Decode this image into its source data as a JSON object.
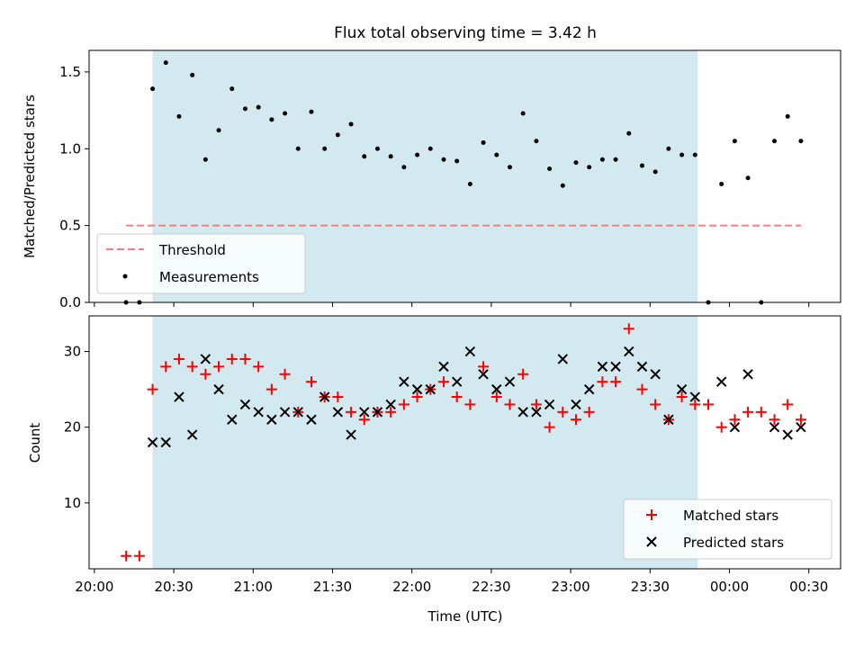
{
  "figure_title": "Flux total observing time = 3.42 h",
  "xlabel": "Time (UTC)",
  "chart_data": [
    {
      "type": "scatter",
      "title": "Flux total observing time = 3.42 h",
      "ylabel": "Matched/Predicted stars",
      "xlabel": "",
      "x_axis": "time",
      "xlim": [
        "19:58",
        "00:42"
      ],
      "ylim": [
        0,
        1.64
      ],
      "yticks": [
        0.0,
        0.5,
        1.0,
        1.5
      ],
      "ytick_labels": [
        "0.0",
        "0.5",
        "1.0",
        "1.5"
      ],
      "xticks": [
        "20:00",
        "20:30",
        "21:00",
        "21:30",
        "22:00",
        "22:30",
        "23:00",
        "23:30",
        "00:00",
        "00:30"
      ],
      "shaded_span": {
        "x": [
          "20:22",
          "23:48"
        ],
        "color": "#d3e9f0"
      },
      "threshold": {
        "name": "Threshold",
        "y": 0.5,
        "x": [
          "20:12",
          "00:27"
        ],
        "color": "#f08080",
        "style": "dashed"
      },
      "legend": {
        "position": "lower-left",
        "entries": [
          "Threshold",
          "Measurements"
        ]
      },
      "series": [
        {
          "name": "Measurements",
          "color": "#000000",
          "marker": "dot",
          "x": [
            "20:12",
            "20:17",
            "20:22",
            "20:27",
            "20:32",
            "20:37",
            "20:42",
            "20:47",
            "20:52",
            "20:57",
            "21:02",
            "21:07",
            "21:12",
            "21:17",
            "21:22",
            "21:27",
            "21:32",
            "21:37",
            "21:42",
            "21:47",
            "21:52",
            "21:57",
            "22:02",
            "22:07",
            "22:12",
            "22:17",
            "22:22",
            "22:27",
            "22:32",
            "22:37",
            "22:42",
            "22:47",
            "22:52",
            "22:57",
            "23:02",
            "23:07",
            "23:12",
            "23:17",
            "23:22",
            "23:27",
            "23:32",
            "23:37",
            "23:42",
            "23:47",
            "23:52",
            "23:57",
            "00:02",
            "00:07",
            "00:12",
            "00:17",
            "00:22",
            "00:27"
          ],
          "y": [
            0.0,
            0.0,
            1.39,
            1.56,
            1.21,
            1.48,
            0.93,
            1.12,
            1.39,
            1.26,
            1.27,
            1.19,
            1.23,
            1.0,
            1.24,
            1.0,
            1.09,
            1.16,
            0.95,
            1.0,
            0.95,
            0.88,
            0.96,
            1.0,
            0.93,
            0.92,
            0.77,
            1.04,
            0.96,
            0.88,
            1.23,
            1.05,
            0.87,
            0.76,
            0.91,
            0.88,
            0.93,
            0.93,
            1.1,
            0.89,
            0.85,
            1.0,
            0.96,
            0.96,
            0.0,
            0.77,
            1.05,
            0.81,
            0.0,
            1.05,
            1.21,
            1.05
          ]
        }
      ]
    },
    {
      "type": "scatter",
      "title": "",
      "ylabel": "Count",
      "xlabel": "Time (UTC)",
      "x_axis": "time",
      "xlim": [
        "19:58",
        "00:42"
      ],
      "ylim": [
        1.3,
        34.7
      ],
      "yticks": [
        10,
        20,
        30
      ],
      "ytick_labels": [
        "10",
        "20",
        "30"
      ],
      "xticks": [
        "20:00",
        "20:30",
        "21:00",
        "21:30",
        "22:00",
        "22:30",
        "23:00",
        "23:30",
        "00:00",
        "00:30"
      ],
      "shaded_span": {
        "x": [
          "20:22",
          "23:48"
        ],
        "color": "#d3e9f0"
      },
      "legend": {
        "position": "lower-right",
        "entries": [
          "Matched stars",
          "Predicted stars"
        ]
      },
      "series": [
        {
          "name": "Matched stars",
          "color": "#ff0000",
          "marker": "plus",
          "x": [
            "20:12",
            "20:17",
            "20:22",
            "20:27",
            "20:32",
            "20:37",
            "20:42",
            "20:47",
            "20:52",
            "20:57",
            "21:02",
            "21:07",
            "21:12",
            "21:17",
            "21:22",
            "21:27",
            "21:32",
            "21:37",
            "21:42",
            "21:47",
            "21:52",
            "21:57",
            "22:02",
            "22:07",
            "22:12",
            "22:17",
            "22:22",
            "22:27",
            "22:32",
            "22:37",
            "22:42",
            "22:47",
            "22:52",
            "22:57",
            "23:02",
            "23:07",
            "23:12",
            "23:17",
            "23:22",
            "23:27",
            "23:32",
            "23:37",
            "23:42",
            "23:47",
            "23:52",
            "23:57",
            "00:02",
            "00:07",
            "00:12",
            "00:17",
            "00:22",
            "00:27"
          ],
          "y": [
            3,
            3,
            25,
            28,
            29,
            28,
            27,
            28,
            29,
            29,
            28,
            25,
            27,
            22,
            26,
            24,
            24,
            22,
            21,
            22,
            22,
            23,
            24,
            25,
            26,
            24,
            23,
            28,
            24,
            23,
            27,
            23,
            20,
            22,
            21,
            22,
            26,
            26,
            33,
            25,
            23,
            21,
            24,
            23,
            23,
            20,
            21,
            22,
            22,
            21,
            23,
            21
          ]
        },
        {
          "name": "Predicted stars",
          "color": "#000000",
          "marker": "x",
          "x": [
            "20:22",
            "20:27",
            "20:32",
            "20:37",
            "20:42",
            "20:47",
            "20:52",
            "20:57",
            "21:02",
            "21:07",
            "21:12",
            "21:17",
            "21:22",
            "21:27",
            "21:32",
            "21:37",
            "21:42",
            "21:47",
            "21:52",
            "21:57",
            "22:02",
            "22:07",
            "22:12",
            "22:17",
            "22:22",
            "22:27",
            "22:32",
            "22:37",
            "22:42",
            "22:47",
            "22:52",
            "22:57",
            "23:02",
            "23:07",
            "23:12",
            "23:17",
            "23:22",
            "23:27",
            "23:32",
            "23:37",
            "23:42",
            "23:47",
            "23:57",
            "00:02",
            "00:07",
            "00:17",
            "00:22",
            "00:27"
          ],
          "y": [
            18,
            18,
            24,
            19,
            29,
            25,
            21,
            23,
            22,
            21,
            22,
            22,
            21,
            24,
            22,
            19,
            22,
            22,
            23,
            26,
            25,
            25,
            28,
            26,
            30,
            27,
            25,
            26,
            22,
            22,
            23,
            29,
            23,
            25,
            28,
            28,
            30,
            28,
            27,
            21,
            25,
            24,
            26,
            20,
            27,
            20,
            19,
            20
          ]
        }
      ]
    }
  ]
}
